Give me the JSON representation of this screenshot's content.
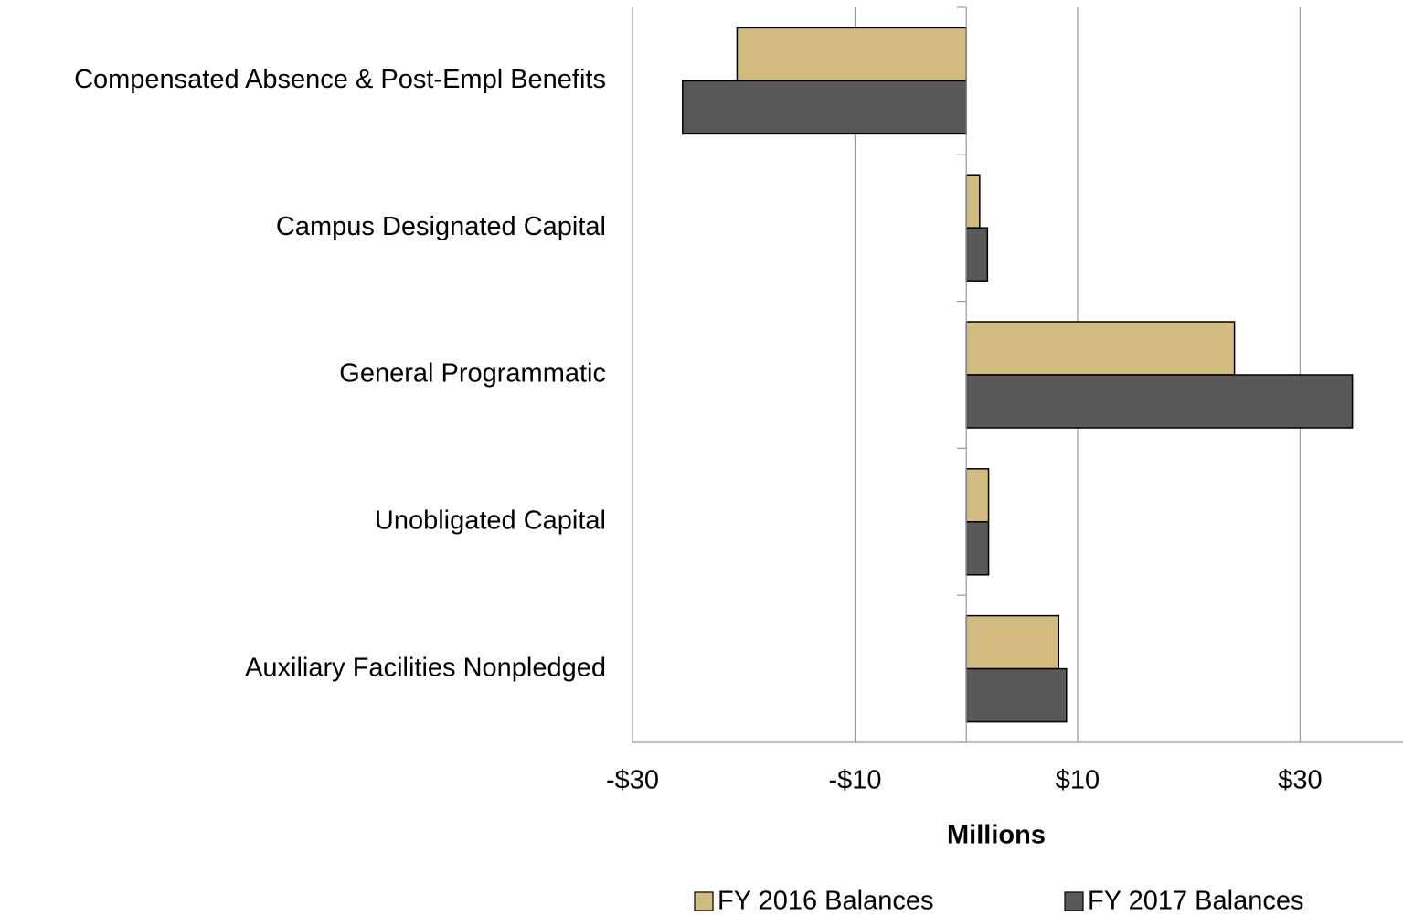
{
  "chart_data": {
    "type": "bar",
    "orientation": "horizontal",
    "categories": [
      "Compensated Absence & Post-Empl Benefits",
      "Campus Designated Capital",
      "General Programmatic",
      "Unobligated Capital",
      "Auxiliary Facilities Nonpledged"
    ],
    "series": [
      {
        "name": "FY 2016 Balances",
        "color": "#d1bb7e",
        "values": [
          -20.6,
          1.2,
          24.1,
          2.0,
          8.3
        ]
      },
      {
        "name": "FY 2017 Balances",
        "color": "#595959",
        "values": [
          -25.5,
          1.9,
          34.7,
          2.0,
          9.0
        ]
      }
    ],
    "xlabel": "Millions",
    "xlim": [
      -30,
      39
    ],
    "xticks": [
      {
        "value": -30,
        "label": "-$30"
      },
      {
        "value": -10,
        "label": "-$10"
      },
      {
        "value": 10,
        "label": "$10"
      },
      {
        "value": 30,
        "label": "$30"
      }
    ],
    "grid": true,
    "legend": "bottom"
  }
}
